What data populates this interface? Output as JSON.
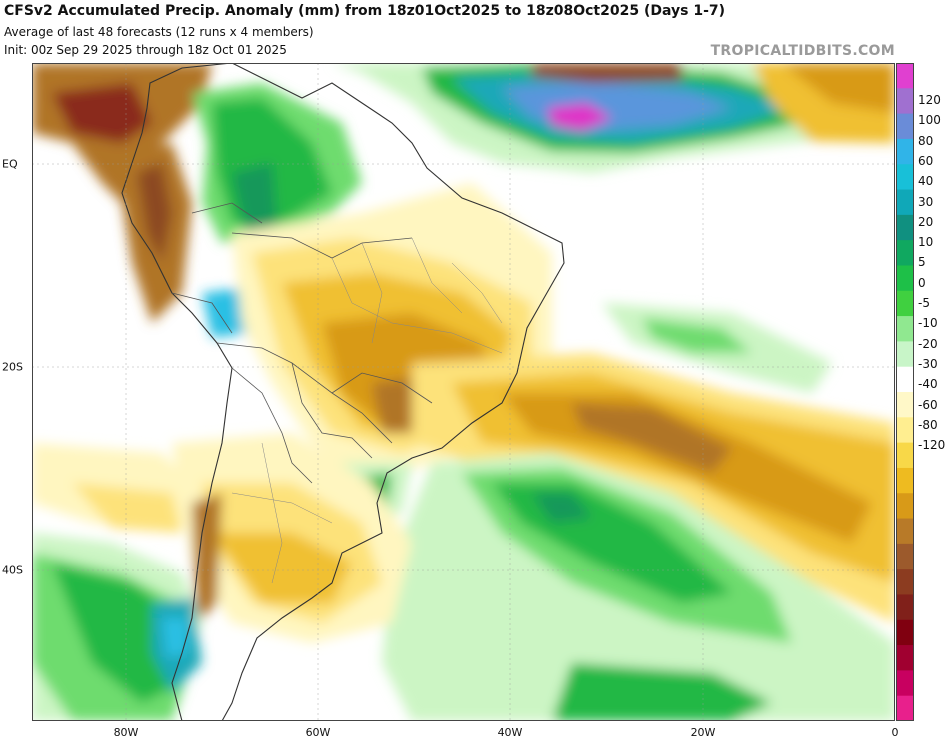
{
  "header": {
    "title": "CFSv2 Accumulated Precip. Anomaly (mm) from 18z01Oct2025 to 18z08Oct2025 (Days 1-7)",
    "subtitle": "Average of last 48 forecasts (12 runs x 4 members)",
    "init": "Init: 00z Sep 29 2025 through 18z Oct 01 2025",
    "credit": "TROPICALTIDBITS.COM"
  },
  "axes": {
    "lat_labels": [
      "EQ",
      "20S",
      "40S"
    ],
    "lon_labels": [
      "80W",
      "60W",
      "40W",
      "20W",
      "0"
    ]
  },
  "colorbar": {
    "labels": [
      "120",
      "100",
      "80",
      "60",
      "40",
      "30",
      "20",
      "10",
      "5",
      "0",
      "-5",
      "-10",
      "-20",
      "-30",
      "-40",
      "-60",
      "-80",
      "-120"
    ],
    "colors": [
      "#e040d0",
      "#a070d0",
      "#6a8cd8",
      "#30b4e8",
      "#18c0d8",
      "#10a8b8",
      "#109080",
      "#10a860",
      "#1ec048",
      "#40d040",
      "#90e890",
      "#c8f5c8",
      "#ffffff",
      "#fff8c8",
      "#ffee90",
      "#f8d848",
      "#eebb20",
      "#d89a18",
      "#b87a28",
      "#9c5a2c",
      "#8c3c20",
      "#80201a",
      "#800010",
      "#a00030",
      "#c80060",
      "#e8208c"
    ]
  },
  "map": {
    "colors": {
      "ocean": "#ffffff",
      "light_green": "#ccf5c4",
      "mid_green": "#6edc6e",
      "green": "#22b844",
      "dark_green": "#13985a",
      "teal": "#1aa8b8",
      "cyan": "#2cc0e4",
      "blue": "#5a96dc",
      "purple": "#a060c8",
      "magenta": "#e030c8",
      "pale_yellow": "#fff6c0",
      "yellow": "#fde27a",
      "gold": "#f0c030",
      "orange": "#d89a18",
      "brown": "#b07428",
      "dark_brown": "#8c4a24",
      "red_brown": "#8a2a1e",
      "border": "#333333",
      "state_border": "#888888"
    }
  }
}
